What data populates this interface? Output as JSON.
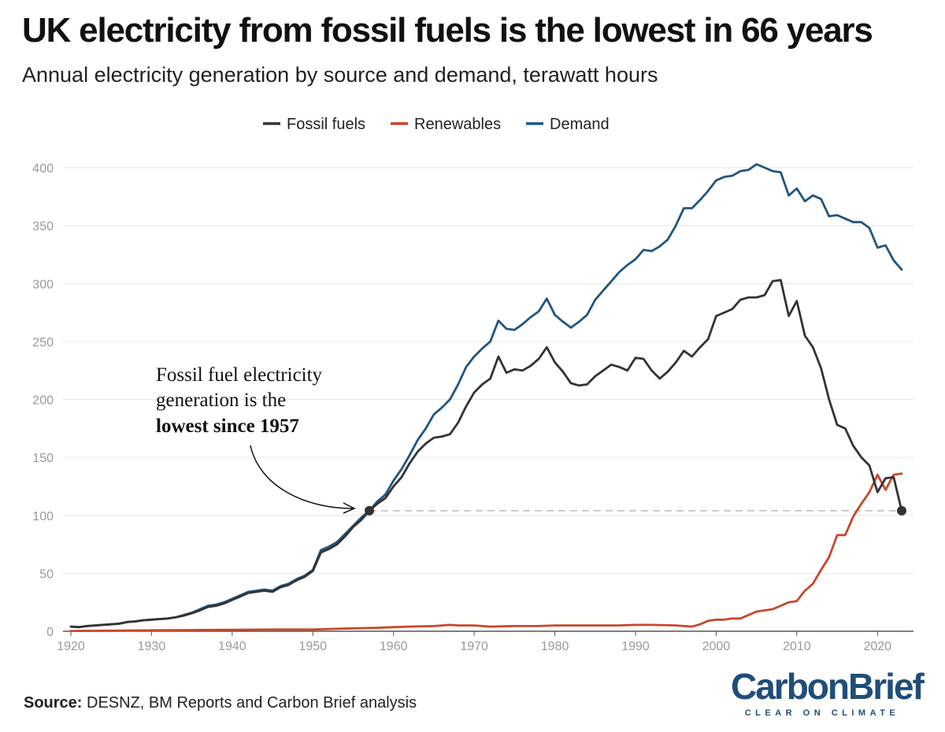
{
  "title": "UK electricity from fossil fuels is the lowest in 66 years",
  "subtitle": "Annual electricity generation by source and demand, terawatt hours",
  "source_label": "Source:",
  "source_text": " DESNZ, BM Reports and Carbon Brief analysis",
  "logo": {
    "name": "CarbonBrief",
    "tagline": "CLEAR ON CLIMATE"
  },
  "annotation": {
    "line1": "Fossil fuel electricity",
    "line2": "generation is the",
    "line3": "lowest since 1957"
  },
  "colors": {
    "fossil": "#333333",
    "renewables": "#c8472c",
    "demand": "#1f5580",
    "grid": "#e6e6e6",
    "tick": "#999999",
    "reference": "#bbbbbb"
  },
  "chart_data": {
    "type": "line",
    "xlim": [
      1920,
      2023
    ],
    "ylim": [
      0,
      400
    ],
    "xticks": [
      1920,
      1930,
      1940,
      1950,
      1960,
      1970,
      1980,
      1990,
      2000,
      2010,
      2020
    ],
    "yticks": [
      0,
      50,
      100,
      150,
      200,
      250,
      300,
      350,
      400
    ],
    "grid": true,
    "legend_position": "top-center",
    "reference_line": {
      "y": 104,
      "from_x": 1957,
      "to_x": 2023
    },
    "highlight_points": [
      {
        "x": 1957,
        "y": 104
      },
      {
        "x": 2023,
        "y": 104
      }
    ],
    "series": [
      {
        "name": "Fossil fuels",
        "points": [
          [
            1920,
            4
          ],
          [
            1921,
            3.5
          ],
          [
            1922,
            4.5
          ],
          [
            1923,
            5
          ],
          [
            1924,
            5.5
          ],
          [
            1925,
            6
          ],
          [
            1926,
            6.5
          ],
          [
            1927,
            8
          ],
          [
            1928,
            8.5
          ],
          [
            1929,
            9.5
          ],
          [
            1930,
            10
          ],
          [
            1931,
            10.5
          ],
          [
            1932,
            11
          ],
          [
            1933,
            12
          ],
          [
            1934,
            13.5
          ],
          [
            1935,
            15.5
          ],
          [
            1936,
            18
          ],
          [
            1937,
            21
          ],
          [
            1938,
            22
          ],
          [
            1939,
            24
          ],
          [
            1940,
            27
          ],
          [
            1941,
            30
          ],
          [
            1942,
            33
          ],
          [
            1943,
            34
          ],
          [
            1944,
            35
          ],
          [
            1945,
            34
          ],
          [
            1946,
            38
          ],
          [
            1947,
            40
          ],
          [
            1948,
            44
          ],
          [
            1949,
            47
          ],
          [
            1950,
            52
          ],
          [
            1951,
            68
          ],
          [
            1952,
            71
          ],
          [
            1953,
            75
          ],
          [
            1954,
            82
          ],
          [
            1955,
            90
          ],
          [
            1956,
            96
          ],
          [
            1957,
            104
          ],
          [
            1958,
            110
          ],
          [
            1959,
            115
          ],
          [
            1960,
            125
          ],
          [
            1961,
            133
          ],
          [
            1962,
            145
          ],
          [
            1963,
            155
          ],
          [
            1964,
            162
          ],
          [
            1965,
            167
          ],
          [
            1966,
            168
          ],
          [
            1967,
            170
          ],
          [
            1968,
            180
          ],
          [
            1969,
            194
          ],
          [
            1970,
            206
          ],
          [
            1971,
            213
          ],
          [
            1972,
            218
          ],
          [
            1973,
            237
          ],
          [
            1974,
            223
          ],
          [
            1975,
            226
          ],
          [
            1976,
            225
          ],
          [
            1977,
            229
          ],
          [
            1978,
            235
          ],
          [
            1979,
            245
          ],
          [
            1980,
            232
          ],
          [
            1981,
            224
          ],
          [
            1982,
            214
          ],
          [
            1983,
            212
          ],
          [
            1984,
            213
          ],
          [
            1985,
            220
          ],
          [
            1986,
            225
          ],
          [
            1987,
            230
          ],
          [
            1988,
            228
          ],
          [
            1989,
            225
          ],
          [
            1990,
            236
          ],
          [
            1991,
            235
          ],
          [
            1992,
            225
          ],
          [
            1993,
            218
          ],
          [
            1994,
            224
          ],
          [
            1995,
            232
          ],
          [
            1996,
            242
          ],
          [
            1997,
            237
          ],
          [
            1998,
            245
          ],
          [
            1999,
            252
          ],
          [
            2000,
            272
          ],
          [
            2001,
            275
          ],
          [
            2002,
            278
          ],
          [
            2003,
            286
          ],
          [
            2004,
            288
          ],
          [
            2005,
            288
          ],
          [
            2006,
            290
          ],
          [
            2007,
            302
          ],
          [
            2008,
            303
          ],
          [
            2009,
            272
          ],
          [
            2010,
            285
          ],
          [
            2011,
            255
          ],
          [
            2012,
            245
          ],
          [
            2013,
            227
          ],
          [
            2014,
            200
          ],
          [
            2015,
            178
          ],
          [
            2016,
            175
          ],
          [
            2017,
            160
          ],
          [
            2018,
            150
          ],
          [
            2019,
            143
          ],
          [
            2020,
            120
          ],
          [
            2021,
            132
          ],
          [
            2022,
            133
          ],
          [
            2023,
            104
          ]
        ]
      },
      {
        "name": "Renewables",
        "points": [
          [
            1920,
            0.3
          ],
          [
            1925,
            0.5
          ],
          [
            1930,
            0.8
          ],
          [
            1935,
            1
          ],
          [
            1940,
            1.2
          ],
          [
            1945,
            1.5
          ],
          [
            1950,
            1.5
          ],
          [
            1952,
            2
          ],
          [
            1955,
            2.5
          ],
          [
            1958,
            3
          ],
          [
            1960,
            3.5
          ],
          [
            1962,
            4
          ],
          [
            1965,
            4.5
          ],
          [
            1967,
            5.5
          ],
          [
            1968,
            5
          ],
          [
            1970,
            5
          ],
          [
            1972,
            4
          ],
          [
            1975,
            4.5
          ],
          [
            1978,
            4.5
          ],
          [
            1980,
            5
          ],
          [
            1983,
            5
          ],
          [
            1985,
            5
          ],
          [
            1988,
            5
          ],
          [
            1990,
            5.5
          ],
          [
            1992,
            5.5
          ],
          [
            1995,
            5
          ],
          [
            1997,
            4
          ],
          [
            1998,
            6
          ],
          [
            1999,
            9
          ],
          [
            2000,
            10
          ],
          [
            2001,
            10
          ],
          [
            2002,
            11
          ],
          [
            2003,
            11
          ],
          [
            2004,
            14
          ],
          [
            2005,
            17
          ],
          [
            2006,
            18
          ],
          [
            2007,
            19
          ],
          [
            2008,
            22
          ],
          [
            2009,
            25
          ],
          [
            2010,
            26
          ],
          [
            2011,
            35
          ],
          [
            2012,
            41
          ],
          [
            2013,
            53
          ],
          [
            2014,
            64
          ],
          [
            2015,
            83
          ],
          [
            2016,
            83
          ],
          [
            2017,
            99
          ],
          [
            2018,
            110
          ],
          [
            2019,
            120
          ],
          [
            2020,
            135
          ],
          [
            2021,
            122
          ],
          [
            2022,
            135
          ],
          [
            2023,
            136
          ]
        ]
      },
      {
        "name": "Demand",
        "points": [
          [
            1920,
            4
          ],
          [
            1921,
            3.5
          ],
          [
            1922,
            4.5
          ],
          [
            1923,
            5
          ],
          [
            1924,
            5.5
          ],
          [
            1925,
            6
          ],
          [
            1926,
            6.5
          ],
          [
            1927,
            8
          ],
          [
            1928,
            8.5
          ],
          [
            1929,
            9.5
          ],
          [
            1930,
            10
          ],
          [
            1931,
            10.5
          ],
          [
            1932,
            11
          ],
          [
            1933,
            12
          ],
          [
            1934,
            14
          ],
          [
            1935,
            16
          ],
          [
            1936,
            19
          ],
          [
            1937,
            22
          ],
          [
            1938,
            23
          ],
          [
            1939,
            25
          ],
          [
            1940,
            28
          ],
          [
            1941,
            31
          ],
          [
            1942,
            34
          ],
          [
            1943,
            35
          ],
          [
            1944,
            36
          ],
          [
            1945,
            35
          ],
          [
            1946,
            39
          ],
          [
            1947,
            41
          ],
          [
            1948,
            45
          ],
          [
            1949,
            48
          ],
          [
            1950,
            53
          ],
          [
            1951,
            70
          ],
          [
            1952,
            73
          ],
          [
            1953,
            77
          ],
          [
            1954,
            84
          ],
          [
            1955,
            91
          ],
          [
            1956,
            98
          ],
          [
            1957,
            104
          ],
          [
            1958,
            112
          ],
          [
            1959,
            118
          ],
          [
            1960,
            130
          ],
          [
            1961,
            140
          ],
          [
            1962,
            152
          ],
          [
            1963,
            165
          ],
          [
            1964,
            175
          ],
          [
            1965,
            187
          ],
          [
            1966,
            193
          ],
          [
            1967,
            200
          ],
          [
            1968,
            213
          ],
          [
            1969,
            228
          ],
          [
            1970,
            237
          ],
          [
            1971,
            244
          ],
          [
            1972,
            250
          ],
          [
            1973,
            268
          ],
          [
            1974,
            261
          ],
          [
            1975,
            260
          ],
          [
            1976,
            265
          ],
          [
            1977,
            271
          ],
          [
            1978,
            276
          ],
          [
            1979,
            287
          ],
          [
            1980,
            273
          ],
          [
            1981,
            267
          ],
          [
            1982,
            262
          ],
          [
            1983,
            267
          ],
          [
            1984,
            273
          ],
          [
            1985,
            286
          ],
          [
            1986,
            294
          ],
          [
            1987,
            302
          ],
          [
            1988,
            310
          ],
          [
            1989,
            316
          ],
          [
            1990,
            321
          ],
          [
            1991,
            329
          ],
          [
            1992,
            328
          ],
          [
            1993,
            332
          ],
          [
            1994,
            338
          ],
          [
            1995,
            350
          ],
          [
            1996,
            365
          ],
          [
            1997,
            365
          ],
          [
            1998,
            372
          ],
          [
            1999,
            380
          ],
          [
            2000,
            389
          ],
          [
            2001,
            392
          ],
          [
            2002,
            393
          ],
          [
            2003,
            397
          ],
          [
            2004,
            398
          ],
          [
            2005,
            403
          ],
          [
            2006,
            400
          ],
          [
            2007,
            397
          ],
          [
            2008,
            396
          ],
          [
            2009,
            376
          ],
          [
            2010,
            382
          ],
          [
            2011,
            371
          ],
          [
            2012,
            376
          ],
          [
            2013,
            373
          ],
          [
            2014,
            358
          ],
          [
            2015,
            359
          ],
          [
            2016,
            356
          ],
          [
            2017,
            353
          ],
          [
            2018,
            353
          ],
          [
            2019,
            348
          ],
          [
            2020,
            331
          ],
          [
            2021,
            333
          ],
          [
            2022,
            320
          ],
          [
            2023,
            312
          ]
        ]
      }
    ]
  }
}
